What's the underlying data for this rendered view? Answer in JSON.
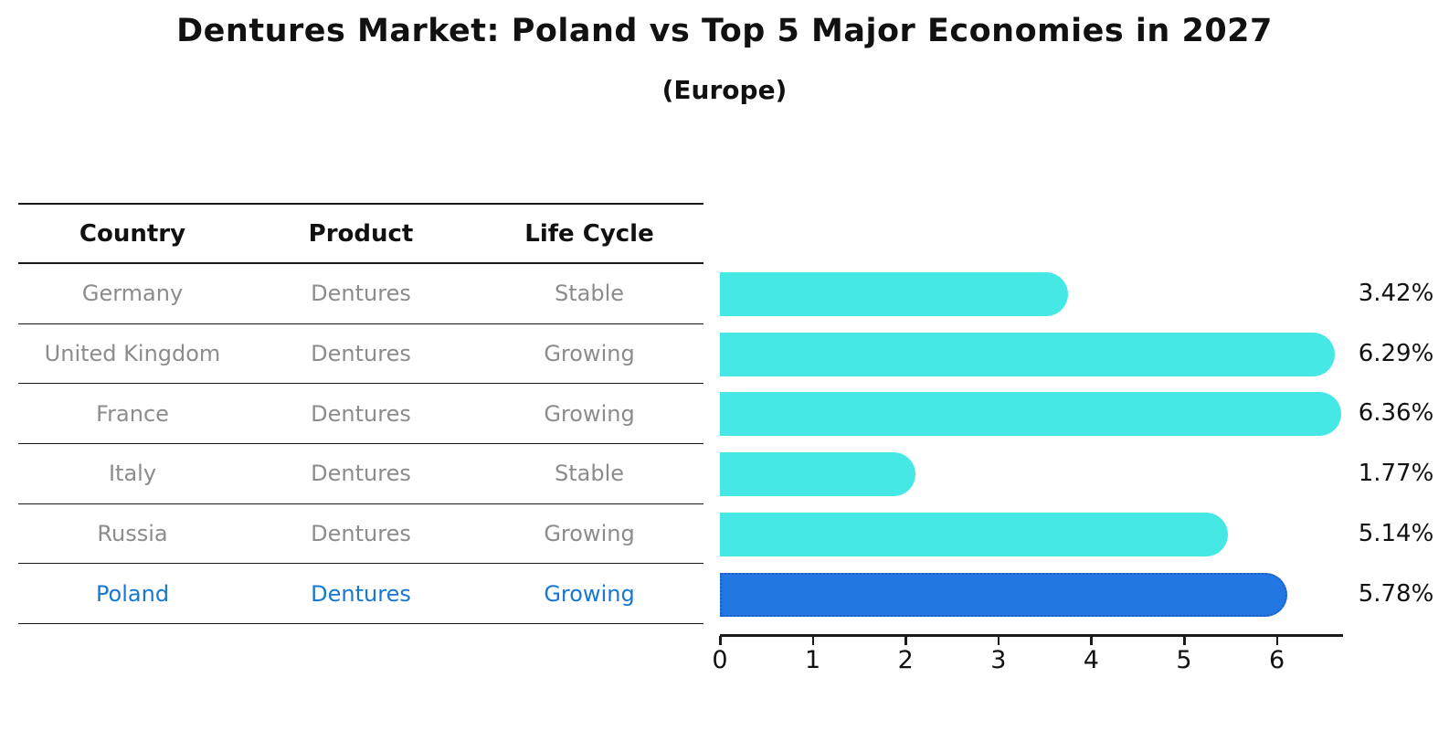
{
  "title": "Dentures Market: Poland vs Top 5 Major Economies in 2027",
  "subtitle": "(Europe)",
  "table": {
    "headers": [
      "Country",
      "Product",
      "Life Cycle"
    ]
  },
  "chart_data": {
    "type": "bar",
    "orientation": "horizontal",
    "title": "Dentures Market: Poland vs Top 5 Major Economies in 2027",
    "subtitle": "(Europe)",
    "categories": [
      "Germany",
      "United Kingdom",
      "France",
      "Italy",
      "Russia",
      "Poland"
    ],
    "values": [
      3.42,
      6.29,
      6.36,
      1.77,
      5.14,
      5.78
    ],
    "rows": [
      {
        "country": "Germany",
        "product": "Dentures",
        "life_cycle": "Stable",
        "value": 3.42,
        "label": "3.42%",
        "highlight": false
      },
      {
        "country": "United Kingdom",
        "product": "Dentures",
        "life_cycle": "Growing",
        "value": 6.29,
        "label": "6.29%",
        "highlight": false
      },
      {
        "country": "France",
        "product": "Dentures",
        "life_cycle": "Growing",
        "value": 6.36,
        "label": "6.36%",
        "highlight": false
      },
      {
        "country": "Italy",
        "product": "Dentures",
        "life_cycle": "Stable",
        "value": 1.77,
        "label": "1.77%",
        "highlight": false
      },
      {
        "country": "Russia",
        "product": "Dentures",
        "life_cycle": "Growing",
        "value": 5.14,
        "label": "5.14%",
        "highlight": false
      },
      {
        "country": "Poland",
        "product": "Dentures",
        "life_cycle": "Growing",
        "value": 5.78,
        "label": "5.78%",
        "highlight": true
      }
    ],
    "x_ticks": [
      0,
      1,
      2,
      3,
      4,
      5,
      6
    ],
    "xlim": [
      0,
      6.71
    ],
    "grid": false,
    "legend": null,
    "colors": {
      "bar": "#45e8e4",
      "highlight_bar": "#2277e2",
      "highlight_border": "#1b5fc6",
      "highlight_text": "#1778d2",
      "row_text": "#8c8c8c",
      "axis": "#1a1a1a"
    }
  }
}
